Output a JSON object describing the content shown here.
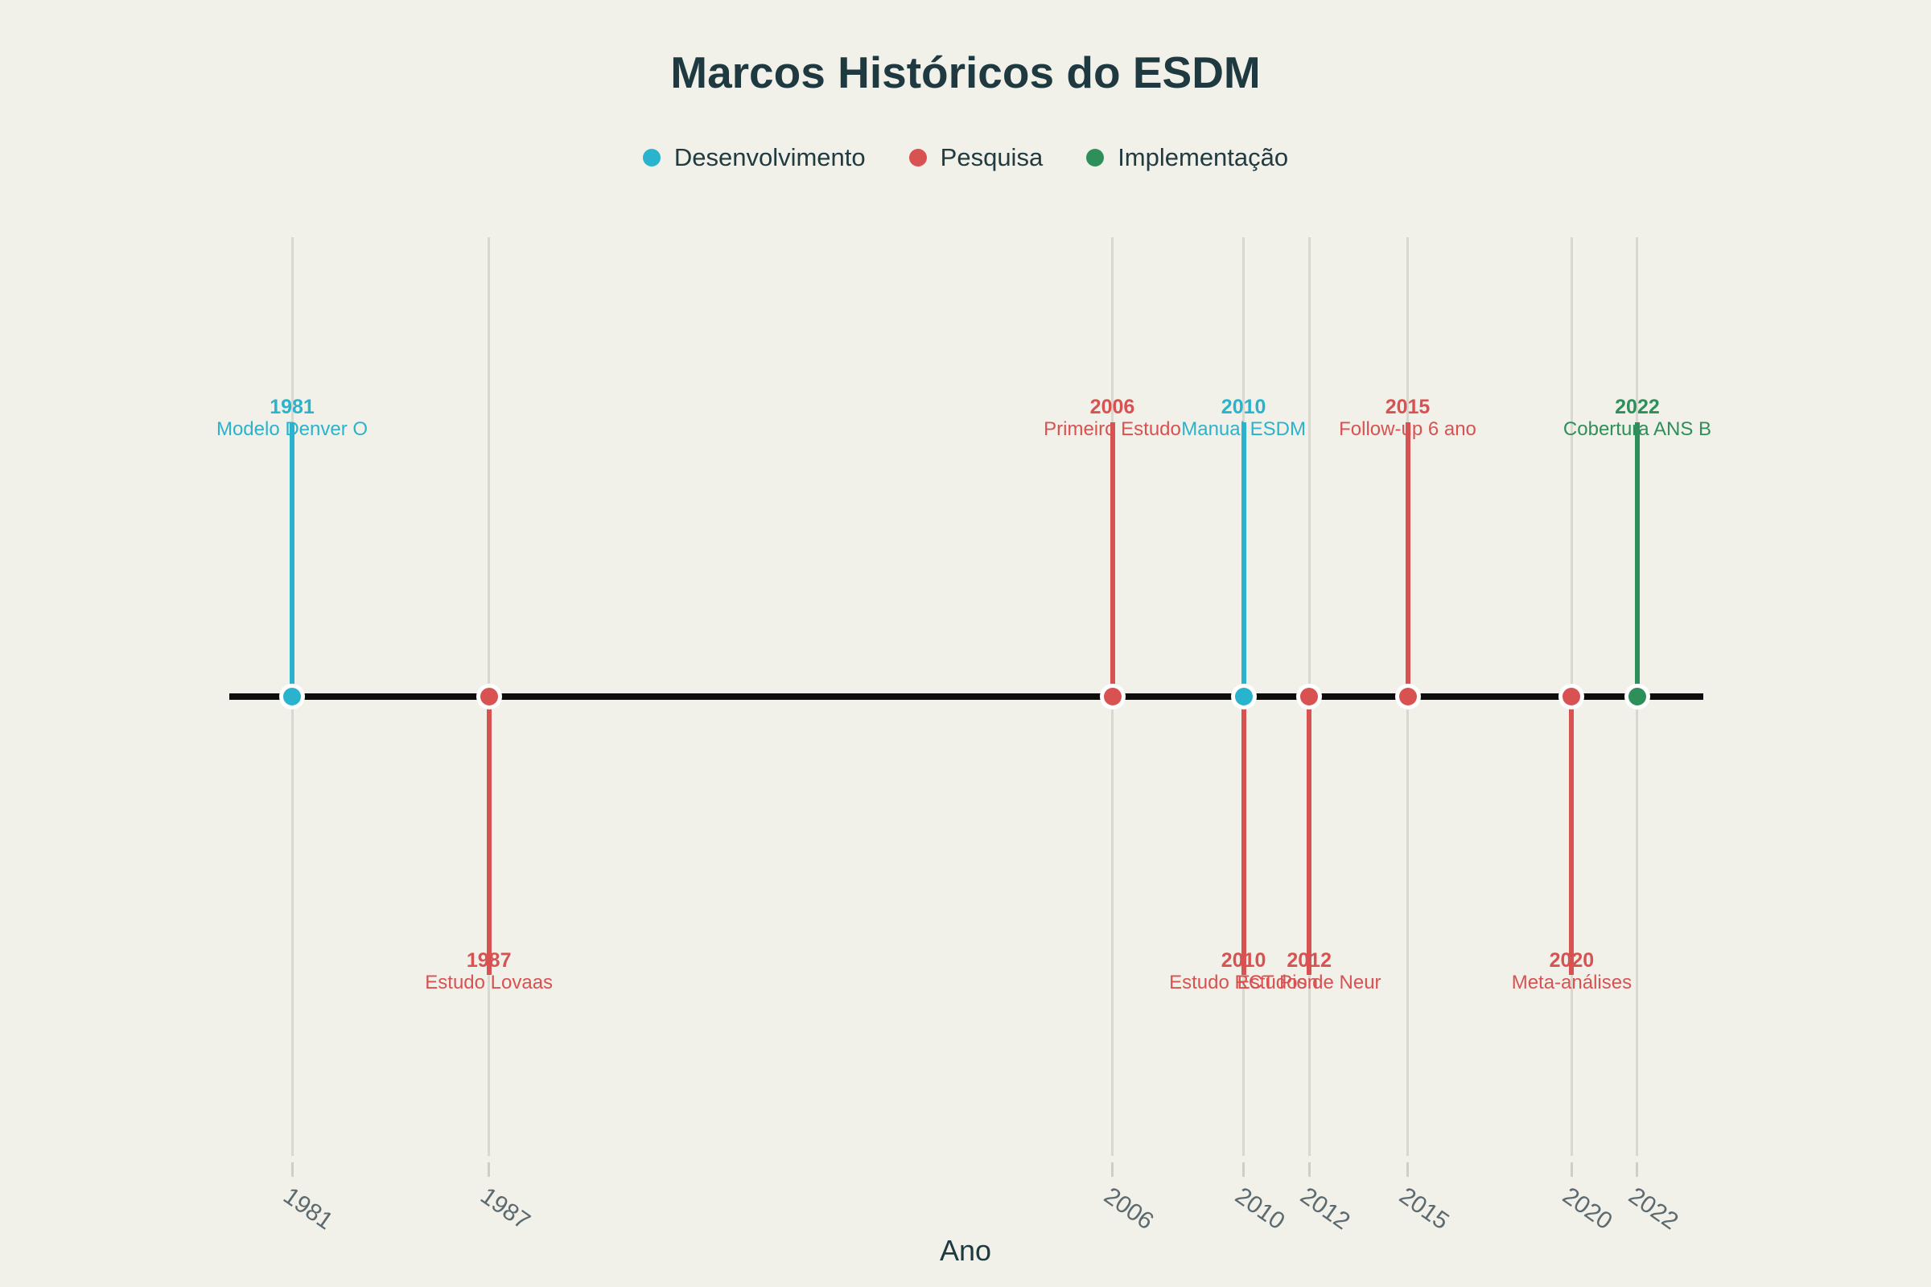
{
  "chart_data": {
    "type": "scatter",
    "subtype": "timeline",
    "title": "Marcos Históricos do ESDM",
    "xlabel": "Ano",
    "x_ticks": [
      1981,
      1987,
      2006,
      2010,
      2012,
      2015,
      2020,
      2022
    ],
    "xlim": [
      1979,
      2024
    ],
    "grid": true,
    "legend_position": "top-center",
    "series": [
      {
        "name": "Desenvolvimento",
        "color": "#2ab3cd",
        "points": [
          {
            "year": 1981,
            "label": "Modelo Denver O",
            "side": "above"
          },
          {
            "year": 2010,
            "label": "Manual ESDM",
            "side": "above"
          }
        ]
      },
      {
        "name": "Pesquisa",
        "color": "#d95252",
        "points": [
          {
            "year": 1987,
            "label": "Estudo Lovaas",
            "side": "below"
          },
          {
            "year": 2006,
            "label": "Primeiro Estudo",
            "side": "above"
          },
          {
            "year": 2010,
            "label": "Estudo RCT Pion",
            "side": "below"
          },
          {
            "year": 2012,
            "label": "Estudos de Neur",
            "side": "below"
          },
          {
            "year": 2015,
            "label": "Follow-up 6 ano",
            "side": "above"
          },
          {
            "year": 2020,
            "label": "Meta-análises",
            "side": "below"
          }
        ]
      },
      {
        "name": "Implementação",
        "color": "#2e8f5a",
        "points": [
          {
            "year": 2022,
            "label": "Cobertura ANS B",
            "side": "above"
          }
        ]
      }
    ]
  },
  "colors": {
    "background": "#f1f0e9",
    "title_text": "#1e3a40",
    "legend_text": "#213b41",
    "tick_text": "#5c6a6f",
    "gridline": "#d9d8d0",
    "timeline": "#0d0d0d"
  }
}
